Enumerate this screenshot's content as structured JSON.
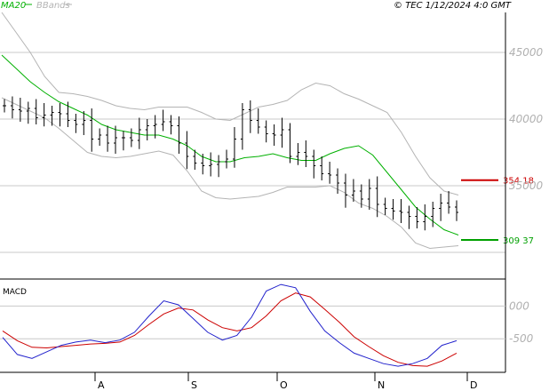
{
  "header": {
    "indicator_ma": "MA20",
    "indicator_bbands": "BBands",
    "stamp": "© TEC 1/12/2024 4:0 GMT"
  },
  "colors": {
    "price": "#000000",
    "ma": "#00b000",
    "bbands": "#b4b4b4",
    "resistance": "#cc0000",
    "support": "#00a000",
    "macd": "#2222cc",
    "signal": "#cc0000",
    "grid": "#c8c8c8",
    "axis": "#000000",
    "tick_text": "#b0b0b0"
  },
  "price_panel": {
    "y_ticks": [
      {
        "value": 45000,
        "label": "45000"
      },
      {
        "value": 40000,
        "label": "40000"
      },
      {
        "value": 35000,
        "label": "35000"
      }
    ],
    "resistance": {
      "value": 35418,
      "label": "354 18"
    },
    "support": {
      "value": 30937,
      "label": "309 37"
    }
  },
  "macd_panel": {
    "title": "MACD",
    "y_ticks": [
      {
        "value": 0,
        "label": "000"
      },
      {
        "value": -500,
        "label": "-500"
      }
    ]
  },
  "x_ticks": [
    "A",
    "S",
    "O",
    "N",
    "D"
  ],
  "chart_data": {
    "type": "line",
    "title": "",
    "x_tick_labels": [
      "A",
      "S",
      "O",
      "N",
      "D"
    ],
    "price_ylim": [
      28000,
      48000
    ],
    "macd_ylim": [
      -1000,
      400
    ],
    "series": [
      {
        "name": "MA20",
        "values": [
          44800,
          43800,
          42800,
          42000,
          41300,
          40800,
          40300,
          39600,
          39200,
          39000,
          38800,
          38800,
          38500,
          38000,
          37200,
          36800,
          36800,
          37100,
          37200,
          37400,
          37100,
          36900,
          36900,
          37400,
          37800,
          38000,
          37300,
          36000,
          34700,
          33400,
          32500,
          31700,
          31300
        ]
      },
      {
        "name": "BBands",
        "values": [
          48000,
          46500,
          45000,
          43200,
          42000,
          41900,
          41700,
          41400,
          41000,
          40800,
          40700,
          40900,
          40900,
          40900,
          40500,
          40000,
          39900,
          40400,
          40900,
          41100,
          41400,
          42200,
          42700,
          42500,
          41900,
          41500,
          41000,
          40500,
          39000,
          37200,
          35600,
          34600,
          34300
        ]
      },
      {
        "name": "BBands",
        "values": [
          41600,
          41100,
          40600,
          40100,
          39300,
          38400,
          37500,
          37200,
          37100,
          37200,
          37400,
          37600,
          37300,
          36100,
          34600,
          34100,
          34000,
          34100,
          34200,
          34500,
          34900,
          34900,
          34900,
          35000,
          34500,
          33700,
          33300,
          32700,
          31900,
          30700,
          30300,
          30400,
          30500
        ]
      },
      {
        "name": "MACD",
        "values": [
          -480,
          -740,
          -800,
          -700,
          -600,
          -550,
          -520,
          -560,
          -520,
          -400,
          -150,
          80,
          20,
          -190,
          -400,
          -520,
          -450,
          -170,
          230,
          330,
          280,
          -80,
          -380,
          -560,
          -720,
          -800,
          -880,
          -920,
          -880,
          -800,
          -600,
          -530
        ]
      },
      {
        "name": "Signal",
        "values": [
          -380,
          -530,
          -630,
          -640,
          -620,
          -600,
          -580,
          -570,
          -550,
          -450,
          -280,
          -120,
          -30,
          -60,
          -210,
          -330,
          -380,
          -330,
          -150,
          80,
          200,
          140,
          -50,
          -250,
          -470,
          -620,
          -760,
          -860,
          -910,
          -920,
          -840,
          -720
        ]
      }
    ],
    "ohlc_closes": [
      41000,
      40700,
      40600,
      40800,
      40100,
      40300,
      40500,
      40400,
      39900,
      39600,
      39900,
      38500,
      38800,
      38200,
      38600,
      38600,
      38400,
      39200,
      39500,
      39600,
      39800,
      39500,
      38200,
      37200,
      36700,
      36500,
      36600,
      36800,
      37000,
      38500,
      40700,
      39900,
      39400,
      38900,
      38800,
      39200,
      37200,
      37500,
      37200,
      36500,
      35900,
      35800,
      35200,
      34300,
      34600,
      34000,
      34800,
      33600,
      33300,
      33100,
      33000,
      32700,
      32300,
      32700,
      33300,
      33700,
      33400,
      33000
    ]
  }
}
